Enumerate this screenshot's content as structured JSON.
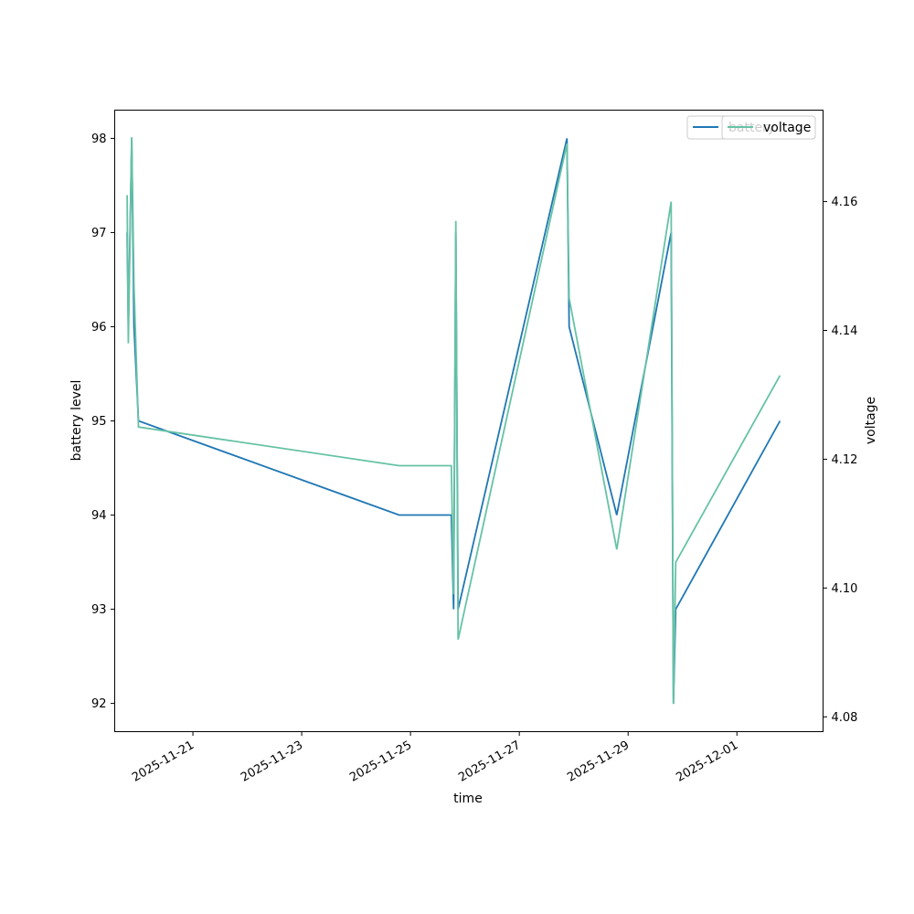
{
  "chart_data": {
    "type": "line",
    "xlabel": "time",
    "ylabel_left": "battery level",
    "ylabel_right": "voltage",
    "x_ticks": [
      "2025-11-21",
      "2025-11-23",
      "2025-11-25",
      "2025-11-27",
      "2025-11-29",
      "2025-12-01"
    ],
    "y_left_ticks": [
      92,
      93,
      94,
      95,
      96,
      97,
      98
    ],
    "y_right_ticks": [
      "4.08",
      "4.10",
      "4.12",
      "4.14",
      "4.16"
    ],
    "xlim": [
      "2025-11-19 13:30",
      "2025-12-02 14:00"
    ],
    "ylim_left": [
      91.7,
      98.3
    ],
    "ylim_right": [
      4.0777,
      4.1742
    ],
    "grid": false,
    "legend_placement": "top-right",
    "series": [
      {
        "name": "battery",
        "axis": "left",
        "color": "#1f77b4",
        "points": [
          [
            "2025-11-19 19:00",
            97.0
          ],
          [
            "2025-11-19 19:30",
            96.0
          ],
          [
            "2025-11-19 21:00",
            98.0
          ],
          [
            "2025-11-19 22:00",
            96.0
          ],
          [
            "2025-11-20 00:00",
            95.0
          ],
          [
            "2025-11-24 19:00",
            94.0
          ],
          [
            "2025-11-25 18:00",
            94.0
          ],
          [
            "2025-11-25 19:00",
            93.0
          ],
          [
            "2025-11-25 20:00",
            97.0
          ],
          [
            "2025-11-25 21:00",
            93.0
          ],
          [
            "2025-11-27 21:00",
            98.0
          ],
          [
            "2025-11-27 22:00",
            96.0
          ],
          [
            "2025-11-28 19:00",
            94.0
          ],
          [
            "2025-11-29 19:00",
            97.0
          ],
          [
            "2025-11-29 20:00",
            92.0
          ],
          [
            "2025-11-29 21:00",
            93.0
          ],
          [
            "2025-12-01 19:00",
            95.0
          ]
        ]
      },
      {
        "name": "voltage",
        "axis": "right",
        "color": "#66c2a5",
        "points": [
          [
            "2025-11-19 19:00",
            4.161
          ],
          [
            "2025-11-19 19:30",
            4.138
          ],
          [
            "2025-11-19 21:00",
            4.17
          ],
          [
            "2025-11-19 22:00",
            4.147
          ],
          [
            "2025-11-20 00:00",
            4.125
          ],
          [
            "2025-11-24 19:00",
            4.119
          ],
          [
            "2025-11-25 18:00",
            4.119
          ],
          [
            "2025-11-25 19:00",
            4.099
          ],
          [
            "2025-11-25 20:00",
            4.157
          ],
          [
            "2025-11-25 21:00",
            4.092
          ],
          [
            "2025-11-27 21:00",
            4.169
          ],
          [
            "2025-11-27 22:00",
            4.145
          ],
          [
            "2025-11-28 19:00",
            4.106
          ],
          [
            "2025-11-29 19:00",
            4.16
          ],
          [
            "2025-11-29 20:00",
            4.082
          ],
          [
            "2025-11-29 21:00",
            4.104
          ],
          [
            "2025-12-01 19:00",
            4.133
          ]
        ]
      }
    ],
    "legends": [
      {
        "entries": [
          "battery"
        ]
      },
      {
        "entries": [
          "voltage"
        ]
      }
    ]
  }
}
